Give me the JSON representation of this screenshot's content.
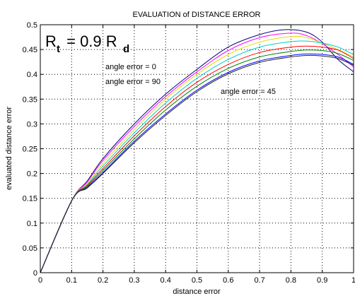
{
  "chart_data": {
    "type": "line",
    "title": "EVALUATION of DISTANCE ERROR",
    "xlabel": "distance error",
    "ylabel": "evaluated distance error",
    "xlim": [
      0,
      1
    ],
    "ylim": [
      0,
      0.5
    ],
    "xticks": [
      "0",
      "0.1",
      "0.2",
      "0.3",
      "0.4",
      "0.5",
      "0.6",
      "0.7",
      "0.8",
      "0.9",
      "1"
    ],
    "yticks": [
      "0",
      "0.05",
      "0.1",
      "0.15",
      "0.2",
      "0.25",
      "0.3",
      "0.35",
      "0.4",
      "0.45",
      "0.5"
    ],
    "grid": true,
    "box_label": {
      "main": "R",
      "sub1": "t",
      "mid": " = 0.9 R",
      "sub2": "d"
    },
    "annotations": [
      "angle error = 0",
      "angle error = 90",
      "angle error = 45"
    ],
    "series": [
      {
        "color": "#000080",
        "x": [
          0,
          0.1,
          0.15,
          0.2,
          0.3,
          0.4,
          0.5,
          0.6,
          0.7,
          0.78,
          0.85,
          0.9,
          0.95,
          1.0
        ],
        "y": [
          0,
          0.145,
          0.185,
          0.23,
          0.3,
          0.36,
          0.41,
          0.455,
          0.48,
          0.49,
          0.485,
          0.465,
          0.43,
          0.405
        ]
      },
      {
        "color": "#ff00ff",
        "x": [
          0,
          0.1,
          0.15,
          0.2,
          0.3,
          0.4,
          0.5,
          0.6,
          0.7,
          0.8,
          0.85,
          0.9,
          0.95,
          1.0
        ],
        "y": [
          0,
          0.145,
          0.183,
          0.226,
          0.295,
          0.355,
          0.405,
          0.448,
          0.474,
          0.483,
          0.478,
          0.462,
          0.44,
          0.415
        ]
      },
      {
        "color": "#dddd00",
        "x": [
          0,
          0.1,
          0.15,
          0.2,
          0.3,
          0.4,
          0.5,
          0.6,
          0.7,
          0.8,
          0.85,
          0.9,
          0.95,
          1.0
        ],
        "y": [
          0,
          0.145,
          0.18,
          0.22,
          0.288,
          0.35,
          0.4,
          0.44,
          0.465,
          0.476,
          0.474,
          0.463,
          0.45,
          0.435
        ]
      },
      {
        "color": "#00cccc",
        "x": [
          0,
          0.1,
          0.15,
          0.2,
          0.3,
          0.4,
          0.5,
          0.6,
          0.7,
          0.8,
          0.85,
          0.9,
          0.95,
          1.0
        ],
        "y": [
          0,
          0.145,
          0.178,
          0.215,
          0.282,
          0.342,
          0.392,
          0.43,
          0.455,
          0.466,
          0.467,
          0.463,
          0.455,
          0.44
        ]
      },
      {
        "color": "#ff0000",
        "x": [
          0,
          0.1,
          0.15,
          0.2,
          0.3,
          0.4,
          0.5,
          0.6,
          0.7,
          0.8,
          0.85,
          0.9,
          0.95,
          1.0
        ],
        "y": [
          0,
          0.145,
          0.176,
          0.21,
          0.276,
          0.335,
          0.384,
          0.42,
          0.444,
          0.455,
          0.457,
          0.455,
          0.449,
          0.432
        ]
      },
      {
        "color": "#008000",
        "x": [
          0,
          0.1,
          0.15,
          0.2,
          0.3,
          0.4,
          0.5,
          0.6,
          0.7,
          0.8,
          0.85,
          0.9,
          0.95,
          1.0
        ],
        "y": [
          0,
          0.145,
          0.174,
          0.206,
          0.27,
          0.328,
          0.376,
          0.412,
          0.435,
          0.446,
          0.449,
          0.448,
          0.442,
          0.428
        ]
      },
      {
        "color": "#0000ff",
        "x": [
          0,
          0.1,
          0.15,
          0.2,
          0.3,
          0.4,
          0.5,
          0.6,
          0.7,
          0.8,
          0.85,
          0.9,
          0.95,
          1.0
        ],
        "y": [
          0,
          0.145,
          0.172,
          0.202,
          0.265,
          0.32,
          0.368,
          0.404,
          0.427,
          0.438,
          0.441,
          0.44,
          0.435,
          0.42
        ]
      },
      {
        "color": "#222222",
        "x": [
          0,
          0.1,
          0.15,
          0.2,
          0.3,
          0.4,
          0.5,
          0.6,
          0.7,
          0.8,
          0.85,
          0.9,
          0.95,
          1.0
        ],
        "y": [
          0,
          0.145,
          0.171,
          0.2,
          0.262,
          0.317,
          0.365,
          0.401,
          0.424,
          0.435,
          0.438,
          0.437,
          0.432,
          0.418
        ]
      }
    ]
  }
}
